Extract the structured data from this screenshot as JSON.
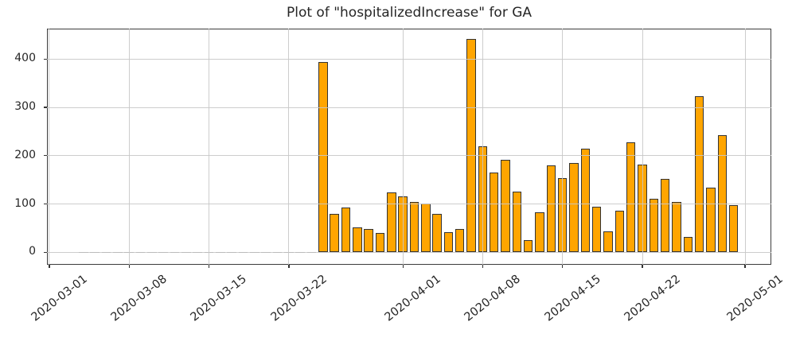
{
  "title": "Plot of \"hospitalizedIncrease\" for GA",
  "chart_data": {
    "type": "bar",
    "title": "Plot of \"hospitalizedIncrease\" for GA",
    "series_name": "hospitalizedIncrease",
    "state": "GA",
    "x": [
      "2020-03-04",
      "2020-03-05",
      "2020-03-06",
      "2020-03-07",
      "2020-03-08",
      "2020-03-09",
      "2020-03-10",
      "2020-03-11",
      "2020-03-12",
      "2020-03-13",
      "2020-03-14",
      "2020-03-15",
      "2020-03-16",
      "2020-03-17",
      "2020-03-18",
      "2020-03-19",
      "2020-03-20",
      "2020-03-21",
      "2020-03-22",
      "2020-03-23",
      "2020-03-24",
      "2020-03-25",
      "2020-03-26",
      "2020-03-27",
      "2020-03-28",
      "2020-03-29",
      "2020-03-30",
      "2020-03-31",
      "2020-04-01",
      "2020-04-02",
      "2020-04-03",
      "2020-04-04",
      "2020-04-05",
      "2020-04-06",
      "2020-04-07",
      "2020-04-08",
      "2020-04-09",
      "2020-04-10",
      "2020-04-11",
      "2020-04-12",
      "2020-04-13",
      "2020-04-14",
      "2020-04-15",
      "2020-04-16",
      "2020-04-17",
      "2020-04-18",
      "2020-04-19",
      "2020-04-20",
      "2020-04-21",
      "2020-04-22",
      "2020-04-23",
      "2020-04-24",
      "2020-04-25",
      "2020-04-26",
      "2020-04-27",
      "2020-04-28",
      "2020-04-29",
      "2020-04-30"
    ],
    "values": [
      0,
      0,
      0,
      0,
      0,
      0,
      0,
      0,
      0,
      0,
      0,
      0,
      0,
      0,
      0,
      0,
      0,
      0,
      0,
      0,
      0,
      394,
      80,
      92,
      51,
      49,
      40,
      124,
      115,
      104,
      101,
      79,
      42,
      48,
      441,
      219,
      165,
      192,
      126,
      25,
      83,
      180,
      153,
      185,
      215,
      95,
      43,
      86,
      228,
      181,
      110,
      152,
      105,
      32,
      323,
      134,
      242,
      98
    ],
    "xtick_labels": [
      "2020-03-01",
      "2020-03-08",
      "2020-03-15",
      "2020-03-22",
      "2020-04-01",
      "2020-04-08",
      "2020-04-15",
      "2020-04-22",
      "2020-05-01"
    ],
    "yticks": [
      0,
      100,
      200,
      300,
      400
    ],
    "ylim": [
      -25,
      463
    ],
    "xlim_days": [
      -0.2,
      63.3
    ],
    "x_base": "2020-03-01",
    "bar_width_days": 0.8,
    "grid": true,
    "legend_position": "none",
    "bar_color": "#FFA500",
    "bar_edge_color": "#333333",
    "grid_color": "#c8c8c8",
    "spine_color": "#3c3c3c",
    "text_color": "#262626",
    "background": "#ffffff"
  }
}
